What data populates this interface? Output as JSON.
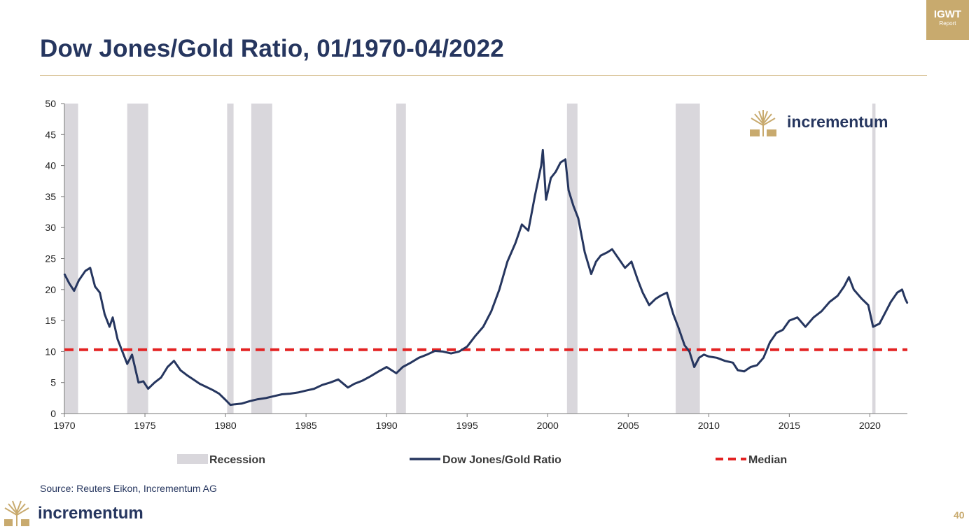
{
  "header": {
    "title": "Dow Jones/Gold Ratio, 01/1970-04/2022",
    "badge_line1": "IGWT",
    "badge_line2": "Report"
  },
  "brand": {
    "name": "incrementum",
    "color": "#26365f",
    "gold": "#c8aa6e"
  },
  "footer": {
    "source": "Source: Reuters Eikon, Incrementum AG",
    "page_number": "40"
  },
  "chart_data": {
    "type": "line",
    "title": "Dow Jones/Gold Ratio, 01/1970-04/2022",
    "xlim": [
      1970,
      2022.33
    ],
    "ylim": [
      0,
      50
    ],
    "x_ticks": [
      "1970",
      "1975",
      "1980",
      "1985",
      "1990",
      "1995",
      "2000",
      "2005",
      "2010",
      "2015",
      "2020"
    ],
    "y_ticks": [
      "0",
      "5",
      "10",
      "15",
      "20",
      "25",
      "30",
      "35",
      "40",
      "45",
      "50"
    ],
    "grid": false,
    "legend_position": "bottom",
    "legend": [
      {
        "label": "Recession",
        "type": "area",
        "color": "#d9d7dc"
      },
      {
        "label": "Dow Jones/Gold Ratio",
        "type": "line",
        "color": "#26365f"
      },
      {
        "label": "Median",
        "type": "dashed",
        "color": "#e32222"
      }
    ],
    "recessions": [
      [
        1970.0,
        1970.85
      ],
      [
        1973.9,
        1975.2
      ],
      [
        1980.1,
        1980.5
      ],
      [
        1981.6,
        1982.9
      ],
      [
        1990.6,
        1991.2
      ],
      [
        2001.2,
        2001.85
      ],
      [
        2007.95,
        2009.45
      ],
      [
        2020.15,
        2020.35
      ]
    ],
    "median": 10.3,
    "series": [
      {
        "name": "Dow Jones/Gold Ratio",
        "color": "#26365f",
        "x": [
          1970.0,
          1970.3,
          1970.6,
          1970.9,
          1971.3,
          1971.6,
          1971.9,
          1972.2,
          1972.5,
          1972.8,
          1973.0,
          1973.3,
          1973.6,
          1973.9,
          1974.2,
          1974.6,
          1974.9,
          1975.2,
          1975.6,
          1976.0,
          1976.4,
          1976.8,
          1977.2,
          1977.6,
          1978.0,
          1978.4,
          1978.8,
          1979.2,
          1979.6,
          1980.0,
          1980.3,
          1980.6,
          1981.0,
          1981.5,
          1982.0,
          1982.5,
          1983.0,
          1983.5,
          1984.0,
          1984.5,
          1985.0,
          1985.5,
          1986.0,
          1986.5,
          1987.0,
          1987.6,
          1988.0,
          1988.5,
          1989.0,
          1989.5,
          1990.0,
          1990.6,
          1991.0,
          1991.5,
          1992.0,
          1992.5,
          1993.0,
          1993.5,
          1994.0,
          1994.5,
          1995.0,
          1995.5,
          1996.0,
          1996.5,
          1997.0,
          1997.5,
          1998.0,
          1998.4,
          1998.8,
          1999.2,
          1999.6,
          1999.7,
          1999.9,
          2000.2,
          2000.5,
          2000.8,
          2001.1,
          2001.3,
          2001.6,
          2001.9,
          2002.3,
          2002.7,
          2003.0,
          2003.3,
          2003.7,
          2004.0,
          2004.4,
          2004.8,
          2005.2,
          2005.6,
          2005.9,
          2006.3,
          2006.7,
          2007.0,
          2007.4,
          2007.8,
          2008.1,
          2008.5,
          2008.8,
          2009.1,
          2009.4,
          2009.7,
          2010.0,
          2010.5,
          2011.0,
          2011.5,
          2011.8,
          2012.2,
          2012.6,
          2013.0,
          2013.4,
          2013.8,
          2014.2,
          2014.6,
          2015.0,
          2015.5,
          2016.0,
          2016.5,
          2017.0,
          2017.5,
          2018.0,
          2018.4,
          2018.7,
          2019.0,
          2019.5,
          2019.9,
          2020.2,
          2020.6,
          2021.0,
          2021.3,
          2021.7,
          2022.0,
          2022.2,
          2022.33
        ],
        "values": [
          22.5,
          21.0,
          19.8,
          21.5,
          23.0,
          23.5,
          20.5,
          19.5,
          16.0,
          14.0,
          15.5,
          12.0,
          10.0,
          8.0,
          9.5,
          5.0,
          5.2,
          4.0,
          5.0,
          5.8,
          7.5,
          8.5,
          7.0,
          6.2,
          5.5,
          4.8,
          4.3,
          3.8,
          3.2,
          2.2,
          1.4,
          1.5,
          1.6,
          2.0,
          2.3,
          2.5,
          2.8,
          3.1,
          3.2,
          3.4,
          3.7,
          4.0,
          4.6,
          5.0,
          5.5,
          4.2,
          4.8,
          5.3,
          6.0,
          6.8,
          7.5,
          6.5,
          7.5,
          8.2,
          9.0,
          9.5,
          10.1,
          10.0,
          9.7,
          10.0,
          10.8,
          12.5,
          14.0,
          16.5,
          20.0,
          24.5,
          27.5,
          30.5,
          29.5,
          35.0,
          40.0,
          42.5,
          34.5,
          38.0,
          39.0,
          40.5,
          41.0,
          36.0,
          33.5,
          31.5,
          26.0,
          22.5,
          24.5,
          25.5,
          26.0,
          26.5,
          25.0,
          23.5,
          24.5,
          21.5,
          19.5,
          17.5,
          18.5,
          19.0,
          19.5,
          16.0,
          14.0,
          11.0,
          10.0,
          7.5,
          9.0,
          9.5,
          9.2,
          9.0,
          8.5,
          8.2,
          7.0,
          6.8,
          7.5,
          7.8,
          9.0,
          11.5,
          13.0,
          13.5,
          15.0,
          15.5,
          14.0,
          15.5,
          16.5,
          18.0,
          19.0,
          20.5,
          22.0,
          20.0,
          18.5,
          17.5,
          14.0,
          14.5,
          16.5,
          18.0,
          19.5,
          20.0,
          18.5,
          17.8
        ]
      }
    ]
  }
}
